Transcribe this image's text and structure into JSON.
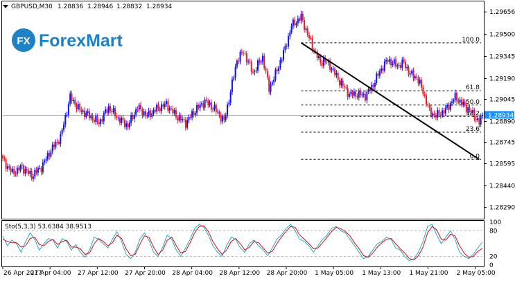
{
  "header": {
    "symbol": "GBPUSD,M30",
    "open": "1.28836",
    "high": "1.28946",
    "low": "1.28832",
    "close": "1.28934"
  },
  "logo": {
    "mark": "FX",
    "text": "ForexMart"
  },
  "price_marker": {
    "value": "1.28934",
    "bg_color": "#1e90ff"
  },
  "colors": {
    "bull": "#1010ff",
    "bear": "#e0202a",
    "trendline": "#000000",
    "fib_level": "#000000",
    "stoch_main": "#2aa8c8",
    "stoch_signal": "#d01010"
  },
  "chart_data": [
    {
      "type": "candlestick",
      "timeframe": "M30",
      "x_tick_labels": [
        "26 Apr 2017",
        "27 Apr 04:00",
        "27 Apr 12:00",
        "27 Apr 20:00",
        "28 Apr 04:00",
        "28 Apr 12:00",
        "28 Apr 20:00",
        "1 May 05:00",
        "1 May 13:00",
        "1 May 21:00",
        "2 May 05:00"
      ],
      "y_tick_labels": [
        "1.29656",
        "1.29500",
        "1.29345",
        "1.29190",
        "1.29045",
        "1.28890",
        "1.28745",
        "1.28595",
        "1.28440",
        "1.28290"
      ],
      "ylim": [
        1.2822,
        1.2972
      ],
      "grid": false,
      "close_path": [
        [
          0,
          1.2862
        ],
        [
          6,
          1.2853
        ],
        [
          12,
          1.2857
        ],
        [
          18,
          1.2851
        ],
        [
          24,
          1.2857
        ],
        [
          30,
          1.2869
        ],
        [
          36,
          1.2878
        ],
        [
          42,
          1.2906
        ],
        [
          48,
          1.2897
        ],
        [
          54,
          1.2893
        ],
        [
          60,
          1.2888
        ],
        [
          66,
          1.2899
        ],
        [
          72,
          1.2891
        ],
        [
          78,
          1.2886
        ],
        [
          84,
          1.2899
        ],
        [
          90,
          1.2893
        ],
        [
          96,
          1.2898
        ],
        [
          102,
          1.2901
        ],
        [
          108,
          1.2893
        ],
        [
          114,
          1.2888
        ],
        [
          120,
          1.2897
        ],
        [
          126,
          1.2903
        ],
        [
          132,
          1.2898
        ],
        [
          138,
          1.2889
        ],
        [
          142,
          1.291
        ],
        [
          146,
          1.2932
        ],
        [
          150,
          1.2938
        ],
        [
          156,
          1.2923
        ],
        [
          162,
          1.2934
        ],
        [
          166,
          1.2912
        ],
        [
          170,
          1.2922
        ],
        [
          176,
          1.294
        ],
        [
          180,
          1.2956
        ],
        [
          186,
          1.2962
        ],
        [
          190,
          1.295
        ],
        [
          194,
          1.2939
        ],
        [
          198,
          1.293
        ],
        [
          200,
          1.2932
        ],
        [
          204,
          1.2928
        ],
        [
          210,
          1.2917
        ],
        [
          216,
          1.2908
        ],
        [
          222,
          1.2908
        ],
        [
          226,
          1.2907
        ],
        [
          230,
          1.2913
        ],
        [
          236,
          1.2926
        ],
        [
          240,
          1.2932
        ],
        [
          246,
          1.2928
        ],
        [
          250,
          1.293
        ],
        [
          254,
          1.2922
        ],
        [
          258,
          1.292
        ],
        [
          262,
          1.291
        ],
        [
          266,
          1.2896
        ],
        [
          270,
          1.2893
        ],
        [
          276,
          1.2897
        ],
        [
          282,
          1.2906
        ],
        [
          286,
          1.2902
        ],
        [
          290,
          1.2898
        ],
        [
          294,
          1.2893
        ],
        [
          297,
          1.2888
        ],
        [
          300,
          1.2896
        ]
      ],
      "fibonacci": [
        {
          "label": "100.0",
          "price": 1.2944
        },
        {
          "label": "61.8",
          "price": 1.29105
        },
        {
          "label": "50.0",
          "price": 1.29005
        },
        {
          "label": "38.2",
          "price": 1.28925
        },
        {
          "label": "23.6",
          "price": 1.28815
        },
        {
          "label": "0.0",
          "price": 1.28625
        }
      ],
      "trendline": {
        "from": [
          186,
          1.2944
        ],
        "to": [
          297,
          1.28625
        ]
      },
      "last_price": 1.28934
    },
    {
      "type": "line",
      "title": "Sto(5,3,3) 53.6384 38.9513",
      "y_tick_labels": [
        "100",
        "80",
        "20",
        "0"
      ],
      "ylim": [
        0,
        100
      ],
      "levels": [
        80,
        20
      ],
      "series": [
        {
          "values": [
            68,
            45,
            58,
            50,
            30,
            55,
            75,
            60,
            35,
            50,
            62,
            58,
            40,
            62,
            55,
            35,
            48,
            30,
            18,
            35,
            65,
            60,
            50,
            40,
            60,
            78,
            55,
            25,
            15,
            30,
            60,
            75,
            58,
            30,
            20,
            42,
            70,
            60,
            35,
            20,
            40,
            60,
            85,
            95,
            88,
            70,
            45,
            30,
            20,
            45,
            65,
            60,
            40,
            30,
            50,
            58,
            45,
            35,
            22,
            40,
            60,
            70,
            85,
            95,
            80,
            60,
            55,
            45,
            30,
            45,
            60,
            70,
            85,
            90,
            80,
            75,
            60,
            45,
            30,
            15,
            20,
            35,
            50,
            55,
            65,
            60,
            40,
            35,
            20,
            10,
            15,
            30,
            55,
            90,
            95,
            70,
            50,
            65,
            80,
            60,
            30,
            20,
            15,
            25,
            40,
            54
          ]
        },
        {
          "values": [
            60,
            55,
            52,
            52,
            42,
            45,
            62,
            65,
            48,
            45,
            55,
            60,
            48,
            55,
            58,
            42,
            42,
            38,
            25,
            28,
            50,
            62,
            55,
            45,
            52,
            70,
            62,
            38,
            22,
            25,
            48,
            68,
            65,
            42,
            25,
            35,
            58,
            65,
            45,
            28,
            32,
            52,
            75,
            90,
            92,
            78,
            55,
            38,
            25,
            35,
            55,
            62,
            50,
            35,
            42,
            55,
            52,
            40,
            28,
            32,
            50,
            65,
            78,
            90,
            88,
            70,
            60,
            50,
            38,
            40,
            52,
            65,
            78,
            88,
            85,
            78,
            68,
            52,
            38,
            22,
            18,
            28,
            42,
            52,
            60,
            62,
            50,
            38,
            28,
            15,
            12,
            22,
            42,
            75,
            90,
            82,
            60,
            58,
            72,
            68,
            45,
            28,
            18,
            20,
            32,
            39
          ]
        }
      ]
    }
  ]
}
